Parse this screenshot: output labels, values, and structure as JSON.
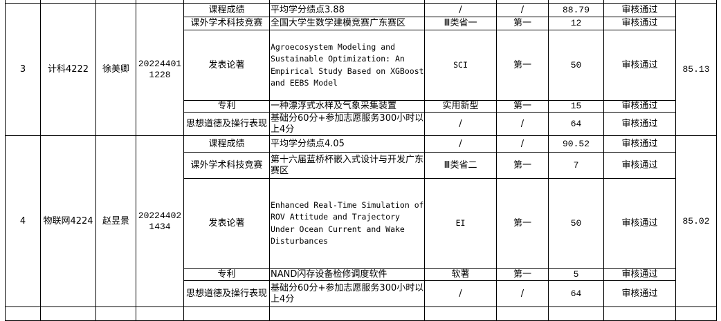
{
  "students": [
    {
      "index": "3",
      "class": "计科4222",
      "name": "徐美卿",
      "student_id": "20224401\n1228",
      "total": "85.13",
      "items": [
        {
          "category": "课程成绩",
          "content": "平均学分绩点3.88",
          "level": "/",
          "rank": "/",
          "score": "88.79",
          "status": "审核通过",
          "mono": false
        },
        {
          "category": "课外学术科技竞赛",
          "content": "全国大学生数学建模竞赛广东赛区",
          "level": "Ⅲ类省一",
          "rank": "第一",
          "score": "12",
          "status": "审核通过",
          "mono": false
        },
        {
          "category": "发表论著",
          "content": "Agroecosystem Modeling and\nSustainable Optimization: An\nEmpirical Study Based on\nXGBoost and EEBS Model",
          "level": "SCI",
          "rank": "第一",
          "score": "50",
          "status": "审核通过",
          "mono": true
        },
        {
          "category": "专利",
          "content": "一种漂浮式水样及气象采集装置",
          "level": "实用新型",
          "rank": "第一",
          "score": "15",
          "status": "审核通过",
          "mono": false
        },
        {
          "category": "思想道德及操行表现",
          "content": "基础分60分+参加志愿服务300小时以上4分",
          "level": "/",
          "rank": "/",
          "score": "64",
          "status": "审核通过",
          "mono": false
        }
      ]
    },
    {
      "index": "4",
      "class": "物联网4224",
      "name": "赵昱景",
      "student_id": "20224402\n1434",
      "total": "85.02",
      "items": [
        {
          "category": "课程成绩",
          "content": "平均学分绩点4.05",
          "level": "/",
          "rank": "/",
          "score": "90.52",
          "status": "审核通过",
          "mono": false
        },
        {
          "category": "课外学术科技竞赛",
          "content": "第十六届蓝桥杯嵌入式设计与开发广东赛区",
          "level": "Ⅲ类省二",
          "rank": "第一",
          "score": "7",
          "status": "审核通过",
          "mono": false
        },
        {
          "category": "发表论著",
          "content": "Enhanced Real-Time Simulation\nof ROV\nAttitude and Trajectory Under\nOcean\nCurrent and Wake Disturbances",
          "level": "EI",
          "rank": "第一",
          "score": "50",
          "status": "审核通过",
          "mono": true
        },
        {
          "category": "专利",
          "content": "NAND闪存设备检修调度软件",
          "level": "软著",
          "rank": "第一",
          "score": "5",
          "status": "审核通过",
          "mono": false
        },
        {
          "category": "思想道德及操行表现",
          "content": "基础分60分+参加志愿服务300小时以上4分",
          "level": "/",
          "rank": "/",
          "score": "64",
          "status": "审核通过",
          "mono": false
        }
      ]
    }
  ]
}
